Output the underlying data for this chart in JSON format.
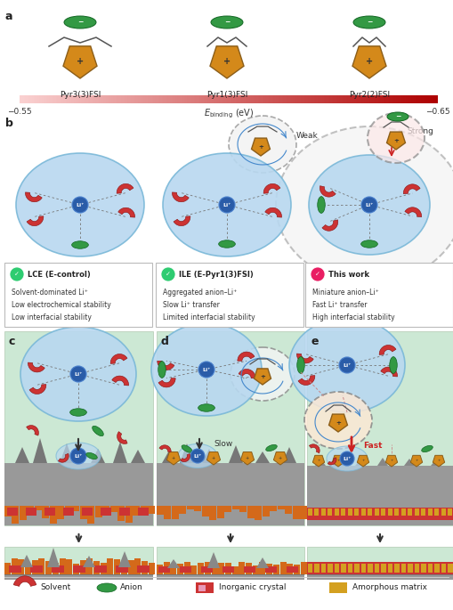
{
  "panel_a_molecules": [
    "Pyr3(3)FSI",
    "Pyr1(3)FSI",
    "Pyr2(2)FSI"
  ],
  "colorbar_left": "-0.55",
  "colorbar_right": "-0.65",
  "colorbar_center": "E_binding (eV)",
  "b_systems": [
    "LCE (E-control)",
    "ILE (E-Pyr1(3)FSI)",
    "This work"
  ],
  "b_check_colors": [
    "#2ecc71",
    "#2ecc71",
    "#e91e63"
  ],
  "b_descriptions": [
    [
      "Solvent-dominated Li⁺",
      "Low electrochemical stability",
      "Low interfacial stability"
    ],
    [
      "Aggregated anion–Li⁺",
      "Slow Li⁺ transfer",
      "Limited interfacial stability"
    ],
    [
      "Miniature anion–Li⁺",
      "Fast Li⁺ transfer",
      "High interfacial stability"
    ]
  ],
  "cde_labels": [
    "c",
    "d",
    "e"
  ],
  "slow_label": "Slow",
  "fast_label": "Fast",
  "weak_label": "Weak",
  "strong_label": "Strong",
  "legend_items": [
    "Solvent",
    "Anion",
    "Inorganic crystal",
    "Amorphous matrix"
  ],
  "colors": {
    "shell_blue": "#b8d8f0",
    "shell_edge": "#7ab8d8",
    "li_face": "#2a5ca8",
    "li_edge": "#4a80cc",
    "solvent_red": "#cc3333",
    "solvent_edge": "#881111",
    "anion_green": "#339944",
    "anion_edge": "#116622",
    "cation_face": "#d4891a",
    "cation_edge": "#8b5e1a",
    "bg_teal": "#cce8d4",
    "bg_teal_dark": "#aed4bc",
    "electrode_gray": "#999999",
    "electrode_dark": "#777777",
    "inorganic_red": "#cc3333",
    "amorphous_orange": "#d4a020",
    "dashed_gray": "#888888",
    "spoke_gray": "#777777",
    "text_dark": "#222222",
    "box_edge": "#cccccc",
    "check_green": "#2ecc71",
    "check_pink": "#e91e63",
    "fast_red": "#cc2222"
  }
}
